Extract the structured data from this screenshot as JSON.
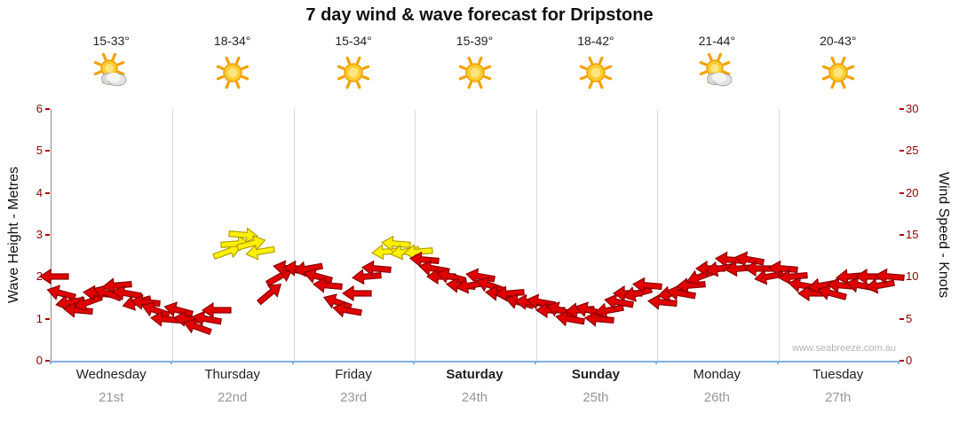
{
  "title": "7 day wind & wave forecast for Dripstone",
  "watermark": "www.seabreeze.com.au",
  "axes": {
    "left_label": "Wave Height - Metres",
    "right_label": "Wind Speed - Knots",
    "left_ticks": [
      0,
      1,
      2,
      3,
      4,
      5,
      6
    ],
    "right_ticks": [
      0,
      5,
      10,
      15,
      20,
      25,
      30
    ]
  },
  "days": [
    {
      "name": "Wednesday",
      "date": "21st",
      "temp": "15-33°",
      "icon": "partly-cloudy",
      "bold": false
    },
    {
      "name": "Thursday",
      "date": "22nd",
      "temp": "18-34°",
      "icon": "sunny",
      "bold": false
    },
    {
      "name": "Friday",
      "date": "23rd",
      "temp": "15-34°",
      "icon": "sunny",
      "bold": false
    },
    {
      "name": "Saturday",
      "date": "24th",
      "temp": "15-39°",
      "icon": "sunny",
      "bold": true
    },
    {
      "name": "Sunday",
      "date": "25th",
      "temp": "18-42°",
      "icon": "sunny",
      "bold": true
    },
    {
      "name": "Monday",
      "date": "26th",
      "temp": "21-44°",
      "icon": "partly-cloudy",
      "bold": false
    },
    {
      "name": "Tuesday",
      "date": "27th",
      "temp": "20-43°",
      "icon": "sunny",
      "bold": false
    }
  ],
  "colors": {
    "arrow_red": "#E10000",
    "arrow_red_stroke": "#8B0000",
    "arrow_yellow": "#FFF000",
    "arrow_yellow_stroke": "#B3A000",
    "tick_label": "#8B0000",
    "axis_blue": "#7FB2E5",
    "grid": "#DCDCDC"
  },
  "chart_data": {
    "type": "scatter",
    "title": "7 day wind & wave forecast for Dripstone",
    "x_axis": {
      "categories": [
        "Wednesday 21st",
        "Thursday 22nd",
        "Friday 23rd",
        "Saturday 24th",
        "Sunday 25th",
        "Monday 26th",
        "Tuesday 27th"
      ]
    },
    "y_left": {
      "label": "Wave Height - Metres",
      "range": [
        0,
        6
      ],
      "ticks": [
        0,
        1,
        2,
        3,
        4,
        5,
        6
      ]
    },
    "y_right": {
      "label": "Wind Speed - Knots",
      "range": [
        0,
        30
      ],
      "ticks": [
        0,
        5,
        10,
        15,
        20,
        25,
        30
      ]
    },
    "legend": "none",
    "grid": "vertical day separators only",
    "encoding": "each point = wind arrow glyph: [day_index, fraction_of_day, wind_speed_knots, direction_deg (0=pointing right/east, 180=pointing left/west)]; color red when speed < 13 kn, yellow when >= 13 kn",
    "series": [
      {
        "name": "Wind speed & direction",
        "units": "knots",
        "points": [
          [
            0,
            0.02,
            10,
            180
          ],
          [
            0,
            0.08,
            8,
            195
          ],
          [
            0,
            0.15,
            7,
            170
          ],
          [
            0,
            0.22,
            6,
            185
          ],
          [
            0,
            0.3,
            7,
            160
          ],
          [
            0,
            0.38,
            8,
            185
          ],
          [
            0,
            0.46,
            8,
            200
          ],
          [
            0,
            0.54,
            9,
            175
          ],
          [
            0,
            0.62,
            8,
            190
          ],
          [
            0,
            0.7,
            7,
            165
          ],
          [
            0,
            0.78,
            7,
            185
          ],
          [
            0,
            0.86,
            6,
            200
          ],
          [
            0,
            0.94,
            5,
            185
          ],
          [
            1,
            0.05,
            6,
            195
          ],
          [
            1,
            0.13,
            5,
            185
          ],
          [
            1,
            0.2,
            4,
            200
          ],
          [
            1,
            0.28,
            5,
            190
          ],
          [
            1,
            0.36,
            6,
            180
          ],
          [
            1,
            0.45,
            13,
            -20
          ],
          [
            1,
            0.52,
            14,
            -5
          ],
          [
            1,
            0.58,
            15,
            5
          ],
          [
            1,
            0.65,
            14,
            -15
          ],
          [
            1,
            0.72,
            13,
            170
          ],
          [
            1,
            0.8,
            8,
            -40
          ],
          [
            1,
            0.88,
            10,
            -30
          ],
          [
            1,
            0.95,
            11,
            190
          ],
          [
            2,
            0.04,
            11,
            185
          ],
          [
            2,
            0.12,
            11,
            170
          ],
          [
            2,
            0.2,
            10,
            195
          ],
          [
            2,
            0.28,
            9,
            185
          ],
          [
            2,
            0.36,
            7,
            200
          ],
          [
            2,
            0.44,
            6,
            190
          ],
          [
            2,
            0.52,
            8,
            180
          ],
          [
            2,
            0.6,
            10,
            175
          ],
          [
            2,
            0.68,
            11,
            185
          ],
          [
            2,
            0.76,
            13,
            175
          ],
          [
            2,
            0.84,
            14,
            185
          ],
          [
            2,
            0.92,
            13,
            170
          ],
          [
            3,
            0.03,
            13,
            175
          ],
          [
            3,
            0.08,
            12,
            185
          ],
          [
            3,
            0.15,
            11,
            190
          ],
          [
            3,
            0.22,
            10,
            180
          ],
          [
            3,
            0.3,
            10,
            195
          ],
          [
            3,
            0.38,
            9,
            185
          ],
          [
            3,
            0.46,
            9,
            170
          ],
          [
            3,
            0.54,
            10,
            190
          ],
          [
            3,
            0.62,
            9,
            200
          ],
          [
            3,
            0.7,
            8,
            185
          ],
          [
            3,
            0.78,
            8,
            175
          ],
          [
            3,
            0.86,
            7,
            195
          ],
          [
            3,
            0.94,
            7,
            185
          ],
          [
            4,
            0.04,
            7,
            190
          ],
          [
            4,
            0.12,
            6,
            180
          ],
          [
            4,
            0.2,
            6,
            200
          ],
          [
            4,
            0.28,
            5,
            190
          ],
          [
            4,
            0.36,
            6,
            175
          ],
          [
            4,
            0.44,
            6,
            195
          ],
          [
            4,
            0.52,
            5,
            185
          ],
          [
            4,
            0.6,
            6,
            170
          ],
          [
            4,
            0.68,
            7,
            190
          ],
          [
            4,
            0.76,
            8,
            180
          ],
          [
            4,
            0.84,
            8,
            165
          ],
          [
            4,
            0.92,
            9,
            185
          ],
          [
            5,
            0.04,
            7,
            185
          ],
          [
            5,
            0.12,
            8,
            170
          ],
          [
            5,
            0.2,
            8,
            190
          ],
          [
            5,
            0.28,
            9,
            175
          ],
          [
            5,
            0.36,
            10,
            160
          ],
          [
            5,
            0.44,
            11,
            180
          ],
          [
            5,
            0.52,
            11,
            170
          ],
          [
            5,
            0.6,
            12,
            185
          ],
          [
            5,
            0.68,
            11,
            175
          ],
          [
            5,
            0.76,
            12,
            190
          ],
          [
            5,
            0.84,
            11,
            180
          ],
          [
            5,
            0.92,
            10,
            170
          ],
          [
            6,
            0.04,
            11,
            185
          ],
          [
            6,
            0.12,
            10,
            175
          ],
          [
            6,
            0.2,
            9,
            190
          ],
          [
            6,
            0.28,
            8,
            180
          ],
          [
            6,
            0.36,
            9,
            170
          ],
          [
            6,
            0.44,
            8,
            195
          ],
          [
            6,
            0.52,
            9,
            185
          ],
          [
            6,
            0.6,
            10,
            175
          ],
          [
            6,
            0.68,
            9,
            190
          ],
          [
            6,
            0.76,
            10,
            180
          ],
          [
            6,
            0.84,
            9,
            170
          ],
          [
            6,
            0.92,
            10,
            185
          ]
        ]
      }
    ]
  }
}
